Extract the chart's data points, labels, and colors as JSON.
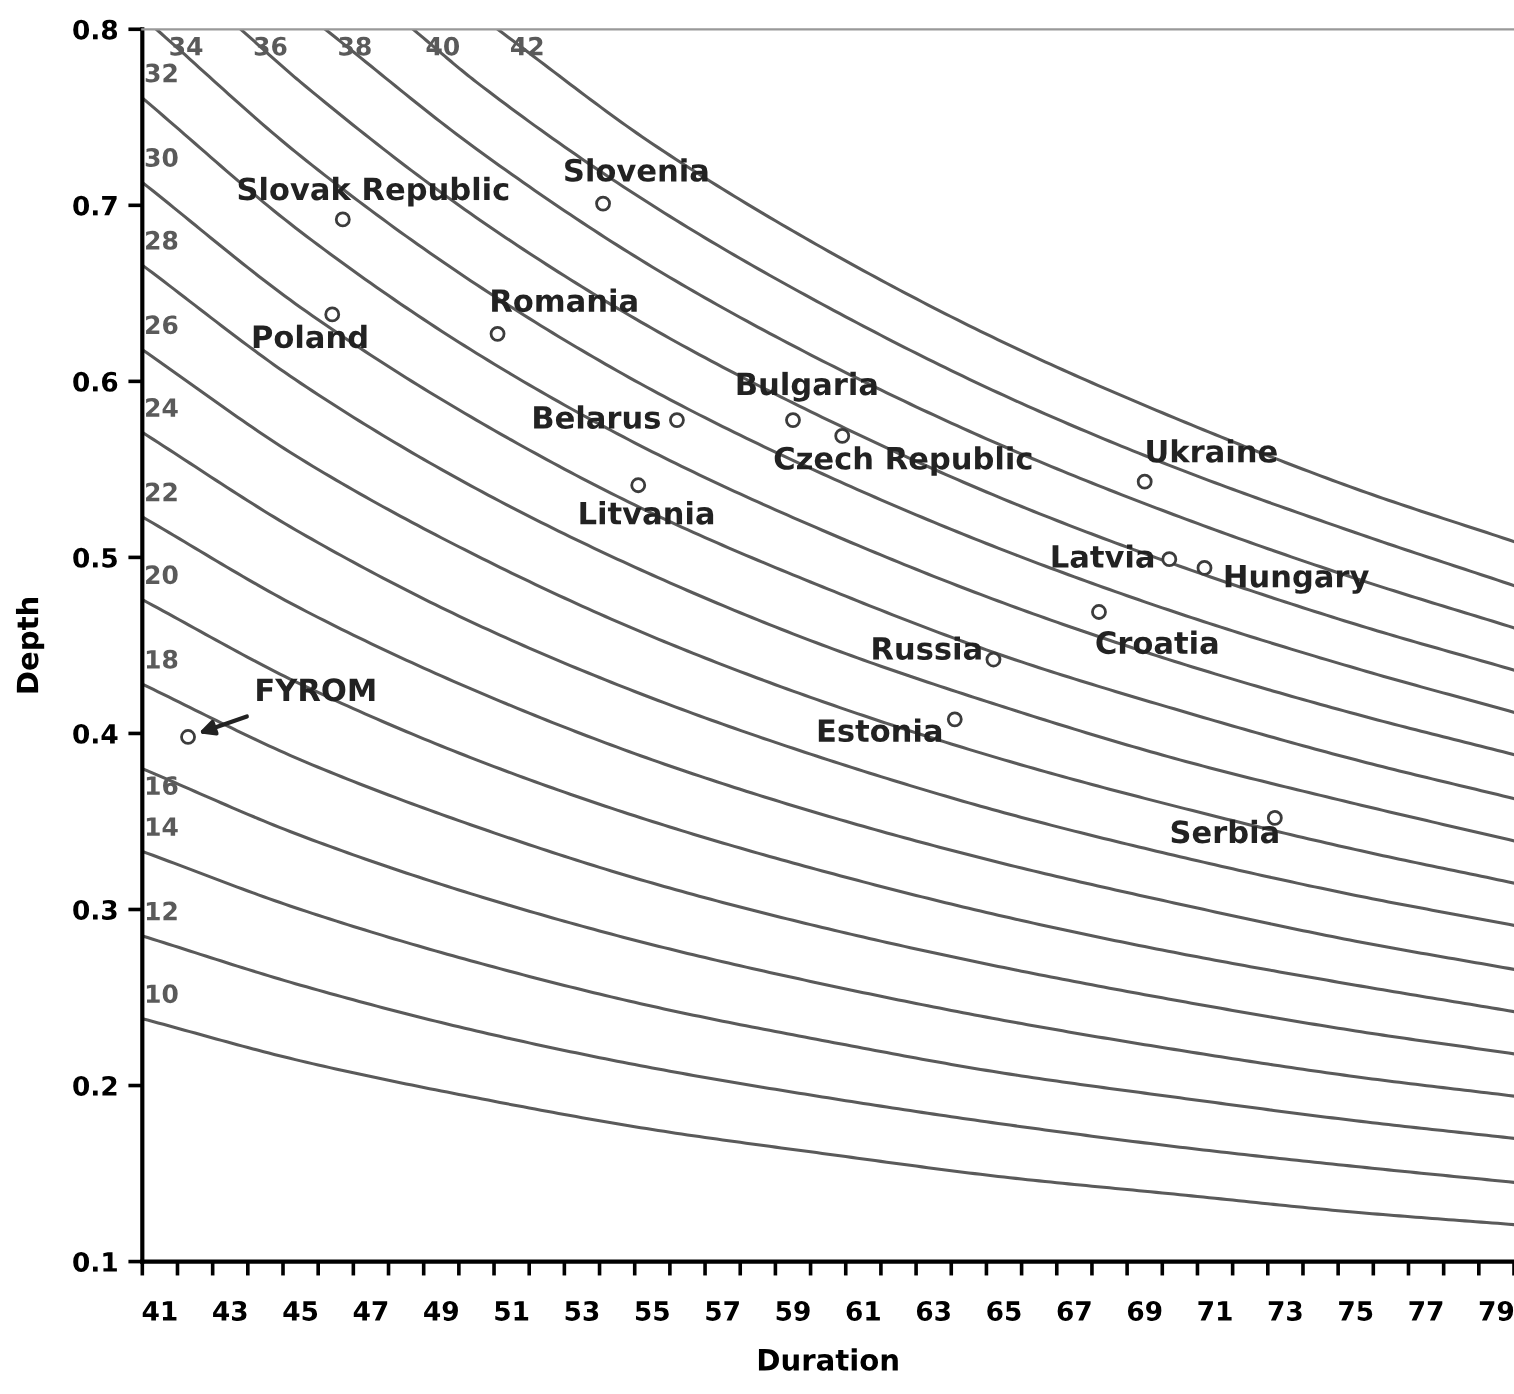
{
  "chart_data": {
    "type": "line",
    "xlabel": "Duration",
    "ylabel": "Depth",
    "xlim": [
      40.5,
      79.5
    ],
    "ylim": [
      0.1,
      0.8
    ],
    "xticks": [
      {
        "value": 40.5,
        "label": null
      },
      41,
      {
        "value": 41.5,
        "label": null
      },
      {
        "value": 42.5,
        "label": null
      },
      43,
      {
        "value": 43.5,
        "label": null
      },
      {
        "value": 44.5,
        "label": null
      },
      45,
      {
        "value": 45.5,
        "label": null
      },
      {
        "value": 46.5,
        "label": null
      },
      47,
      {
        "value": 47.5,
        "label": null
      },
      {
        "value": 48.5,
        "label": null
      },
      49,
      {
        "value": 49.5,
        "label": null
      },
      {
        "value": 50.5,
        "label": null
      },
      51,
      {
        "value": 51.5,
        "label": null
      },
      {
        "value": 52.5,
        "label": null
      },
      53,
      {
        "value": 53.5,
        "label": null
      },
      {
        "value": 54.5,
        "label": null
      },
      55,
      {
        "value": 55.5,
        "label": null
      },
      {
        "value": 56.5,
        "label": null
      },
      57,
      {
        "value": 57.5,
        "label": null
      },
      {
        "value": 58.5,
        "label": null
      },
      59,
      {
        "value": 59.5,
        "label": null
      },
      {
        "value": 60.5,
        "label": null
      },
      61,
      {
        "value": 61.5,
        "label": null
      },
      {
        "value": 62.5,
        "label": null
      },
      63,
      {
        "value": 63.5,
        "label": null
      },
      {
        "value": 64.5,
        "label": null
      },
      65,
      {
        "value": 65.5,
        "label": null
      },
      {
        "value": 66.5,
        "label": null
      },
      67,
      {
        "value": 67.5,
        "label": null
      },
      {
        "value": 68.5,
        "label": null
      },
      69,
      {
        "value": 69.5,
        "label": null
      },
      {
        "value": 70.5,
        "label": null
      },
      71,
      {
        "value": 71.5,
        "label": null
      },
      {
        "value": 72.5,
        "label": null
      },
      73,
      {
        "value": 73.5,
        "label": null
      },
      {
        "value": 74.5,
        "label": null
      },
      75,
      {
        "value": 75.5,
        "label": null
      },
      {
        "value": 76.5,
        "label": null
      },
      77,
      {
        "value": 77.5,
        "label": null
      },
      {
        "value": 78.5,
        "label": null
      },
      79,
      {
        "value": 79.5,
        "label": null
      }
    ],
    "yticks": [
      0.1,
      0.2,
      0.3,
      0.4,
      0.5,
      0.6,
      0.7,
      0.8
    ],
    "grid": false,
    "legend": false,
    "series": [
      {
        "name": "10",
        "color": "#5a5a5a",
        "marker": "none",
        "x": [
          40.5,
          45,
          50,
          55,
          60,
          65,
          70,
          75,
          79.5
        ],
        "values": [
          0.238,
          0.214,
          0.193,
          0.175,
          0.161,
          0.148,
          0.138,
          0.128,
          0.121
        ]
      },
      {
        "name": "12",
        "color": "#5a5a5a",
        "marker": "none",
        "x": [
          40.5,
          45,
          50,
          55,
          60,
          65,
          70,
          75,
          79.5
        ],
        "values": [
          0.285,
          0.257,
          0.231,
          0.21,
          0.193,
          0.178,
          0.165,
          0.154,
          0.145
        ]
      },
      {
        "name": "14",
        "color": "#5a5a5a",
        "marker": "none",
        "x": [
          40.5,
          45,
          50,
          55,
          60,
          65,
          70,
          75,
          79.5
        ],
        "values": [
          0.333,
          0.3,
          0.27,
          0.245,
          0.225,
          0.207,
          0.193,
          0.18,
          0.17
        ]
      },
      {
        "name": "16",
        "color": "#5a5a5a",
        "marker": "none",
        "x": [
          40.5,
          45,
          50,
          55,
          60,
          65,
          70,
          75,
          79.5
        ],
        "values": [
          0.38,
          0.342,
          0.308,
          0.28,
          0.257,
          0.237,
          0.22,
          0.205,
          0.194
        ]
      },
      {
        "name": "18",
        "color": "#5a5a5a",
        "marker": "none",
        "x": [
          40.5,
          45,
          50,
          55,
          60,
          65,
          70,
          75,
          79.5
        ],
        "values": [
          0.428,
          0.385,
          0.347,
          0.315,
          0.289,
          0.267,
          0.248,
          0.231,
          0.218
        ]
      },
      {
        "name": "20",
        "color": "#5a5a5a",
        "marker": "none",
        "x": [
          40.5,
          45,
          50,
          55,
          60,
          65,
          70,
          75,
          79.5
        ],
        "values": [
          0.476,
          0.428,
          0.385,
          0.35,
          0.321,
          0.296,
          0.275,
          0.257,
          0.242
        ]
      },
      {
        "name": "22",
        "color": "#5a5a5a",
        "marker": "none",
        "x": [
          40.5,
          45,
          50,
          55,
          60,
          65,
          70,
          75,
          79.5
        ],
        "values": [
          0.523,
          0.471,
          0.424,
          0.385,
          0.353,
          0.326,
          0.303,
          0.282,
          0.266
        ]
      },
      {
        "name": "24",
        "color": "#5a5a5a",
        "marker": "none",
        "x": [
          40.5,
          45,
          50,
          55,
          60,
          65,
          70,
          75,
          79.5
        ],
        "values": [
          0.571,
          0.514,
          0.462,
          0.42,
          0.385,
          0.355,
          0.33,
          0.308,
          0.291
        ]
      },
      {
        "name": "26",
        "color": "#5a5a5a",
        "marker": "none",
        "x": [
          40.5,
          45,
          50,
          55,
          60,
          65,
          70,
          75,
          79.5
        ],
        "values": [
          0.618,
          0.556,
          0.501,
          0.455,
          0.417,
          0.385,
          0.358,
          0.334,
          0.315
        ]
      },
      {
        "name": "28",
        "color": "#5a5a5a",
        "marker": "none",
        "x": [
          40.5,
          45,
          50,
          55,
          60,
          65,
          70,
          75,
          79.5
        ],
        "values": [
          0.666,
          0.599,
          0.539,
          0.49,
          0.449,
          0.415,
          0.385,
          0.36,
          0.339
        ]
      },
      {
        "name": "30",
        "color": "#5a5a5a",
        "marker": "none",
        "x": [
          40.5,
          45,
          50,
          55,
          60,
          65,
          70,
          75,
          79.5
        ],
        "values": [
          0.713,
          0.642,
          0.578,
          0.525,
          0.482,
          0.444,
          0.413,
          0.385,
          0.363
        ]
      },
      {
        "name": "32",
        "color": "#5a5a5a",
        "marker": "none",
        "x": [
          40.5,
          45,
          50,
          55,
          60,
          65,
          70,
          75,
          79.5
        ],
        "values": [
          0.761,
          0.685,
          0.616,
          0.56,
          0.514,
          0.474,
          0.44,
          0.411,
          0.388
        ]
      },
      {
        "name": "34",
        "color": "#5a5a5a",
        "marker": "none",
        "x": [
          40.9,
          45,
          50,
          55,
          60,
          65,
          70,
          75,
          79.5
        ],
        "values": [
          0.8,
          0.728,
          0.655,
          0.595,
          0.546,
          0.504,
          0.468,
          0.437,
          0.412
        ]
      },
      {
        "name": "36",
        "color": "#5a5a5a",
        "marker": "none",
        "x": [
          43.3,
          45,
          50,
          55,
          60,
          65,
          70,
          75,
          79.5
        ],
        "values": [
          0.8,
          0.77,
          0.693,
          0.63,
          0.578,
          0.533,
          0.495,
          0.462,
          0.436
        ]
      },
      {
        "name": "38",
        "color": "#5a5a5a",
        "marker": "none",
        "x": [
          45.7,
          50,
          55,
          60,
          65,
          70,
          75,
          79.5
        ],
        "values": [
          0.8,
          0.732,
          0.665,
          0.61,
          0.563,
          0.523,
          0.488,
          0.46
        ]
      },
      {
        "name": "40",
        "color": "#5a5a5a",
        "marker": "none",
        "x": [
          48.2,
          50,
          55,
          60,
          65,
          70,
          75,
          79.5
        ],
        "values": [
          0.8,
          0.77,
          0.7,
          0.642,
          0.592,
          0.55,
          0.514,
          0.484
        ]
      },
      {
        "name": "42",
        "color": "#5a5a5a",
        "marker": "none",
        "x": [
          50.6,
          55,
          60,
          65,
          70,
          75,
          79.5
        ],
        "values": [
          0.8,
          0.735,
          0.674,
          0.622,
          0.578,
          0.539,
          0.509
        ]
      },
      {
        "name": "Slovak Republic",
        "type": "scatter",
        "color": "#3c3c3c",
        "marker": "circle",
        "x": [
          46.2
        ],
        "values": [
          0.692
        ]
      },
      {
        "name": "Slovenia",
        "type": "scatter",
        "color": "#3c3c3c",
        "marker": "circle",
        "x": [
          53.6
        ],
        "values": [
          0.701
        ]
      },
      {
        "name": "Poland",
        "type": "scatter",
        "color": "#3c3c3c",
        "marker": "circle",
        "x": [
          45.9
        ],
        "values": [
          0.638
        ]
      },
      {
        "name": "Romania",
        "type": "scatter",
        "color": "#3c3c3c",
        "marker": "circle",
        "x": [
          50.6
        ],
        "values": [
          0.627
        ]
      },
      {
        "name": "Belarus",
        "type": "scatter",
        "color": "#3c3c3c",
        "marker": "circle",
        "x": [
          55.7
        ],
        "values": [
          0.578
        ]
      },
      {
        "name": "Bulgaria",
        "type": "scatter",
        "color": "#3c3c3c",
        "marker": "circle",
        "x": [
          59.0
        ],
        "values": [
          0.578
        ]
      },
      {
        "name": "Czech Republic",
        "type": "scatter",
        "color": "#3c3c3c",
        "marker": "circle",
        "x": [
          60.4
        ],
        "values": [
          0.569
        ]
      },
      {
        "name": "Litvania",
        "type": "scatter",
        "color": "#3c3c3c",
        "marker": "circle",
        "x": [
          54.6
        ],
        "values": [
          0.541
        ]
      },
      {
        "name": "Ukraine",
        "type": "scatter",
        "color": "#3c3c3c",
        "marker": "circle",
        "x": [
          69.0
        ],
        "values": [
          0.543
        ]
      },
      {
        "name": "Latvia",
        "type": "scatter",
        "color": "#3c3c3c",
        "marker": "circle",
        "x": [
          69.7
        ],
        "values": [
          0.499
        ]
      },
      {
        "name": "Hungary",
        "type": "scatter",
        "color": "#3c3c3c",
        "marker": "circle",
        "x": [
          70.7
        ],
        "values": [
          0.494
        ]
      },
      {
        "name": "Croatia",
        "type": "scatter",
        "color": "#3c3c3c",
        "marker": "circle",
        "x": [
          67.7
        ],
        "values": [
          0.469
        ]
      },
      {
        "name": "Russia",
        "type": "scatter",
        "color": "#3c3c3c",
        "marker": "circle",
        "x": [
          64.7
        ],
        "values": [
          0.442
        ]
      },
      {
        "name": "Estonia",
        "type": "scatter",
        "color": "#3c3c3c",
        "marker": "circle",
        "x": [
          63.6
        ],
        "values": [
          0.408
        ]
      },
      {
        "name": "Serbia",
        "type": "scatter",
        "color": "#3c3c3c",
        "marker": "circle",
        "x": [
          72.7
        ],
        "values": [
          0.352
        ]
      },
      {
        "name": "FYROM",
        "type": "scatter",
        "color": "#3c3c3c",
        "marker": "circle",
        "x": [
          41.8
        ],
        "values": [
          0.398
        ]
      }
    ]
  }
}
